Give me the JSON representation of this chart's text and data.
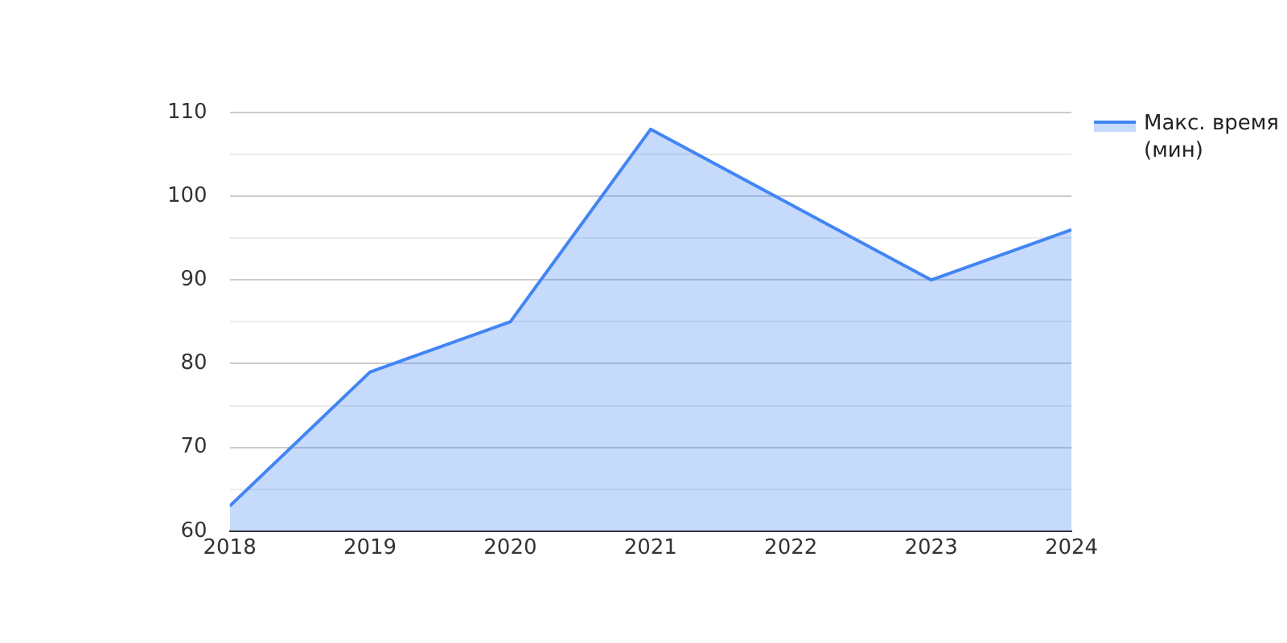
{
  "chart_data": {
    "type": "area",
    "x": [
      2018,
      2019,
      2020,
      2021,
      2022,
      2023,
      2024
    ],
    "series": [
      {
        "name": "Макс. время (мин)",
        "color": "#4285f4",
        "values": [
          63,
          79,
          85,
          108,
          99,
          90,
          96
        ]
      }
    ],
    "xlim": [
      2018,
      2024
    ],
    "xticks": [
      2018,
      2019,
      2020,
      2021,
      2022,
      2023,
      2024
    ],
    "ylim": [
      60,
      110
    ],
    "yticks": [
      60,
      {
        "value": 65,
        "label": null
      },
      70,
      {
        "value": 75,
        "label": null
      },
      80,
      {
        "value": 85,
        "label": null
      },
      90,
      {
        "value": 95,
        "label": null
      },
      100,
      {
        "value": 105,
        "label": null
      },
      110
    ],
    "grid": "y",
    "legend": "right"
  }
}
